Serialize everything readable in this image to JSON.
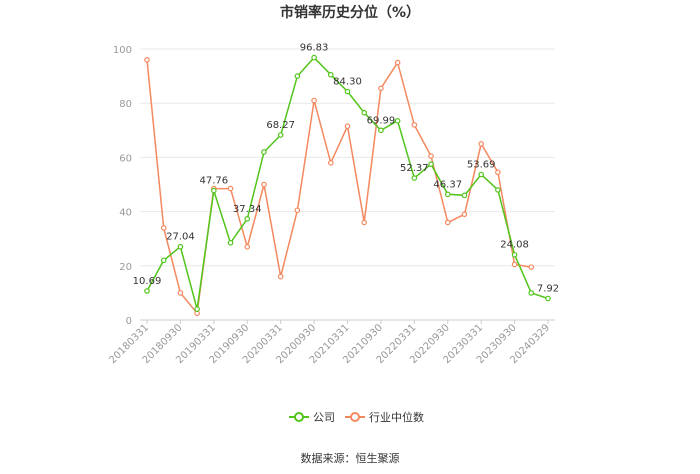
{
  "chart_data": {
    "type": "line",
    "title": "市销率历史分位（%）",
    "ylim": [
      0,
      100
    ],
    "yticks": [
      0,
      20,
      40,
      60,
      80,
      100
    ],
    "x_tick_labels": [
      "20180331",
      "20180930",
      "20190331",
      "20190930",
      "20200331",
      "20200930",
      "20210331",
      "20210930",
      "20220331",
      "20220930",
      "20230331",
      "20230930",
      "20240329"
    ],
    "grid": true,
    "legend_position": "bottom",
    "series": [
      {
        "name": "公司",
        "color": "#52c41a",
        "points": [
          {
            "x": 0,
            "y": 10.69
          },
          {
            "x": 1,
            "y": 22
          },
          {
            "x": 2,
            "y": 27.04
          },
          {
            "x": 3,
            "y": 4
          },
          {
            "x": 4,
            "y": 47.76
          },
          {
            "x": 5,
            "y": 28.5
          },
          {
            "x": 6,
            "y": 37.34
          },
          {
            "x": 7,
            "y": 62
          },
          {
            "x": 8,
            "y": 68.27
          },
          {
            "x": 9,
            "y": 90
          },
          {
            "x": 10,
            "y": 96.83
          },
          {
            "x": 11,
            "y": 90.5
          },
          {
            "x": 12,
            "y": 84.3
          },
          {
            "x": 13,
            "y": 76.5
          },
          {
            "x": 14,
            "y": 69.99
          },
          {
            "x": 15,
            "y": 73.5
          },
          {
            "x": 16,
            "y": 52.37
          },
          {
            "x": 17,
            "y": 57.5
          },
          {
            "x": 18,
            "y": 46.37
          },
          {
            "x": 19,
            "y": 46
          },
          {
            "x": 20,
            "y": 53.69
          },
          {
            "x": 21,
            "y": 48
          },
          {
            "x": 22,
            "y": 24.08
          },
          {
            "x": 23,
            "y": 10
          },
          {
            "x": 24,
            "y": 7.92
          }
        ]
      },
      {
        "name": "行业中位数",
        "color": "#f4885f",
        "points": [
          {
            "x": 0,
            "y": 96
          },
          {
            "x": 1,
            "y": 34
          },
          {
            "x": 2,
            "y": 10
          },
          {
            "x": 3,
            "y": 2.5
          },
          {
            "x": 4,
            "y": 48.5
          },
          {
            "x": 5,
            "y": 48.5
          },
          {
            "x": 6,
            "y": 27
          },
          {
            "x": 7,
            "y": 50
          },
          {
            "x": 8,
            "y": 16
          },
          {
            "x": 9,
            "y": 40.5
          },
          {
            "x": 10,
            "y": 81
          },
          {
            "x": 11,
            "y": 58
          },
          {
            "x": 12,
            "y": 71.5
          },
          {
            "x": 13,
            "y": 36
          },
          {
            "x": 14,
            "y": 85.5
          },
          {
            "x": 15,
            "y": 95
          },
          {
            "x": 16,
            "y": 72
          },
          {
            "x": 17,
            "y": 60.5
          },
          {
            "x": 18,
            "y": 36
          },
          {
            "x": 19,
            "y": 39
          },
          {
            "x": 20,
            "y": 65
          },
          {
            "x": 21,
            "y": 54.5
          },
          {
            "x": 22,
            "y": 20.5
          },
          {
            "x": 23,
            "y": 19.5
          }
        ]
      }
    ],
    "data_labels": [
      {
        "series": 0,
        "x": 0,
        "text": "10.69"
      },
      {
        "series": 0,
        "x": 2,
        "text": "27.04"
      },
      {
        "series": 0,
        "x": 4,
        "text": "47.76"
      },
      {
        "series": 0,
        "x": 6,
        "text": "37.34"
      },
      {
        "series": 0,
        "x": 8,
        "text": "68.27"
      },
      {
        "series": 0,
        "x": 10,
        "text": "96.83"
      },
      {
        "series": 0,
        "x": 12,
        "text": "84.30"
      },
      {
        "series": 0,
        "x": 14,
        "text": "69.99"
      },
      {
        "series": 0,
        "x": 16,
        "text": "52.37"
      },
      {
        "series": 0,
        "x": 18,
        "text": "46.37"
      },
      {
        "series": 0,
        "x": 20,
        "text": "53.69"
      },
      {
        "series": 0,
        "x": 22,
        "text": "24.08"
      },
      {
        "series": 0,
        "x": 24,
        "text": "7.92"
      }
    ]
  },
  "source": "数据来源：恒生聚源"
}
